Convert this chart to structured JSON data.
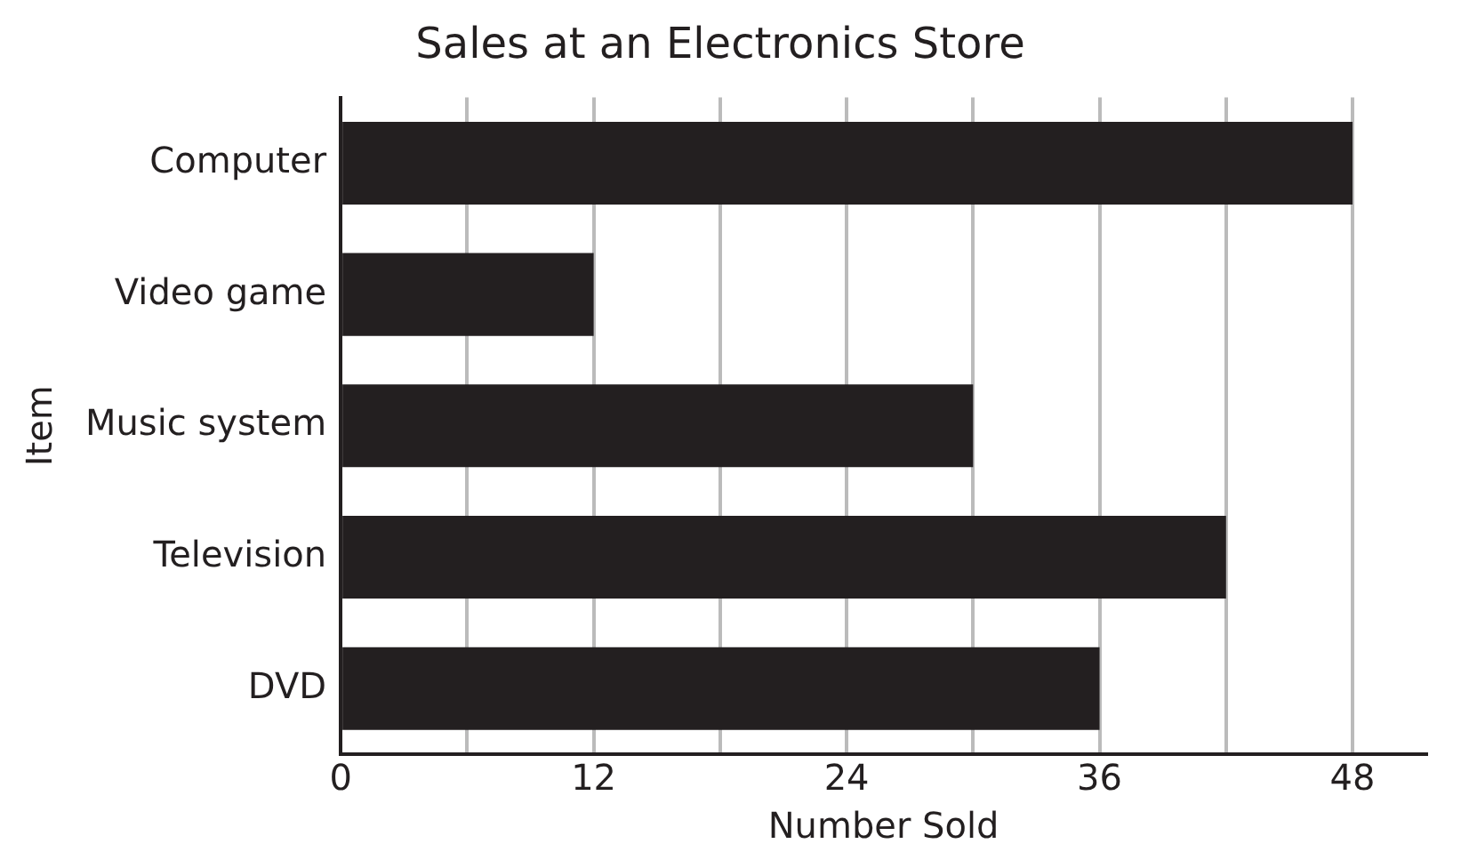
{
  "chart_data": {
    "type": "bar",
    "orientation": "horizontal",
    "title": "Sales at an Electronics Store",
    "xlabel": "Number Sold",
    "ylabel": "Item",
    "categories": [
      "Computer",
      "Video game",
      "Music system",
      "Television",
      "DVD"
    ],
    "values": [
      48,
      12,
      30,
      42,
      36
    ],
    "color": "#231f20",
    "xlim": [
      0,
      51.5
    ],
    "xticks": [
      0,
      {
        "value": 6,
        "label": null
      },
      12,
      {
        "value": 18,
        "label": null
      },
      24,
      {
        "value": 30,
        "label": null
      },
      36,
      {
        "value": 42,
        "label": null
      },
      48
    ],
    "grid": "x"
  }
}
